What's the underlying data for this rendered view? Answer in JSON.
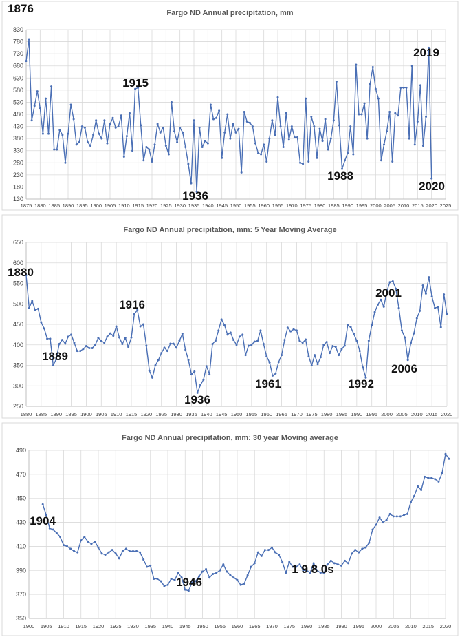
{
  "chart_data": [
    {
      "type": "line",
      "title": "Fargo ND Annual precipitation, mm",
      "xlabel": "",
      "ylabel": "",
      "x_start": 1875,
      "xlim": [
        1875,
        2025
      ],
      "ylim": [
        130,
        830
      ],
      "x_ticks": [
        1875,
        1880,
        1885,
        1890,
        1895,
        1900,
        1905,
        1910,
        1915,
        1920,
        1925,
        1930,
        1935,
        1940,
        1945,
        1950,
        1955,
        1960,
        1965,
        1970,
        1975,
        1980,
        1985,
        1990,
        1995,
        2000,
        2005,
        2010,
        2015,
        2020,
        2025
      ],
      "y_ticks": [
        130,
        180,
        230,
        280,
        330,
        380,
        430,
        480,
        530,
        580,
        630,
        680,
        730,
        780,
        830
      ],
      "grid": true,
      "color": "#4a6fb5",
      "values": [
        700,
        790,
        455,
        515,
        575,
        505,
        400,
        545,
        400,
        595,
        335,
        335,
        415,
        395,
        280,
        400,
        520,
        460,
        355,
        365,
        430,
        425,
        365,
        350,
        395,
        455,
        400,
        380,
        455,
        360,
        440,
        465,
        425,
        430,
        475,
        305,
        390,
        485,
        330,
        585,
        590,
        435,
        290,
        345,
        335,
        285,
        355,
        440,
        405,
        425,
        350,
        315,
        530,
        410,
        365,
        425,
        405,
        345,
        275,
        195,
        455,
        160,
        425,
        345,
        370,
        360,
        520,
        460,
        465,
        495,
        300,
        405,
        480,
        380,
        440,
        405,
        420,
        240,
        490,
        450,
        445,
        430,
        360,
        320,
        315,
        355,
        285,
        380,
        455,
        395,
        550,
        430,
        345,
        485,
        375,
        430,
        385,
        385,
        280,
        275,
        545,
        285,
        470,
        430,
        300,
        420,
        370,
        460,
        335,
        380,
        455,
        615,
        435,
        255,
        290,
        320,
        430,
        315,
        685,
        480,
        480,
        525,
        380,
        605,
        675,
        585,
        545,
        290,
        355,
        410,
        490,
        285,
        485,
        475,
        590,
        590,
        590,
        380,
        680,
        355,
        450,
        600,
        350,
        470,
        755,
        215
      ],
      "annotations": [
        "1876",
        "1915",
        "1936",
        "1988",
        "2019",
        "2020"
      ]
    },
    {
      "type": "line",
      "title": "Fargo ND Annual precipitation, mm: 5 Year Moving Average",
      "xlabel": "",
      "ylabel": "",
      "x_start": 1880,
      "xlim": [
        1880,
        2020
      ],
      "ylim": [
        250,
        650
      ],
      "x_ticks": [
        1880,
        1885,
        1890,
        1895,
        1900,
        1905,
        1910,
        1915,
        1920,
        1925,
        1930,
        1935,
        1940,
        1945,
        1950,
        1955,
        1960,
        1965,
        1970,
        1975,
        1980,
        1985,
        1990,
        1995,
        2000,
        2005,
        2010,
        2015,
        2020
      ],
      "y_ticks": [
        250,
        300,
        350,
        400,
        450,
        500,
        550,
        600,
        650
      ],
      "grid": true,
      "color": "#4a6fb5",
      "values": [
        570,
        490,
        507,
        485,
        488,
        455,
        440,
        415,
        415,
        350,
        365,
        402,
        412,
        403,
        420,
        425,
        405,
        385,
        385,
        390,
        397,
        392,
        392,
        400,
        417,
        410,
        405,
        420,
        428,
        422,
        445,
        418,
        402,
        417,
        395,
        418,
        475,
        485,
        445,
        450,
        398,
        337,
        320,
        350,
        363,
        380,
        393,
        385,
        403,
        403,
        393,
        410,
        427,
        388,
        363,
        328,
        335,
        283,
        302,
        315,
        348,
        328,
        402,
        410,
        435,
        462,
        448,
        425,
        430,
        412,
        400,
        420,
        425,
        375,
        398,
        400,
        408,
        410,
        435,
        402,
        372,
        357,
        325,
        330,
        358,
        375,
        412,
        442,
        433,
        438,
        435,
        410,
        405,
        413,
        372,
        350,
        375,
        353,
        370,
        400,
        407,
        380,
        397,
        395,
        375,
        390,
        398,
        448,
        443,
        427,
        410,
        385,
        345,
        320,
        410,
        448,
        480,
        498,
        510,
        493,
        530,
        553,
        555,
        537,
        490,
        435,
        418,
        363,
        405,
        428,
        465,
        483,
        545,
        525,
        565,
        518,
        490,
        492,
        443,
        523,
        475
      ],
      "annotations": [
        "1880",
        "1889",
        "1916",
        "1936",
        "1961",
        "1992",
        "2001",
        "2006"
      ]
    },
    {
      "type": "line",
      "title": "Fargo ND Annual precipitation, mm: 30 year Moving average",
      "xlabel": "",
      "ylabel": "",
      "x_start": 1904,
      "xlim": [
        1900,
        2020
      ],
      "ylim": [
        350,
        490
      ],
      "x_ticks": [
        1900,
        1905,
        1910,
        1915,
        1920,
        1925,
        1930,
        1935,
        1940,
        1945,
        1950,
        1955,
        1960,
        1965,
        1970,
        1975,
        1980,
        1985,
        1990,
        1995,
        2000,
        2005,
        2010,
        2015,
        2020
      ],
      "y_ticks": [
        350,
        370,
        390,
        410,
        430,
        450,
        470,
        490
      ],
      "grid": true,
      "color": "#4a6fb5",
      "values": [
        445,
        436,
        425,
        424,
        421,
        418,
        411,
        410,
        408,
        406,
        405,
        415,
        418,
        414,
        412,
        414,
        409,
        404,
        403,
        405,
        407,
        404,
        400,
        406,
        408,
        406,
        406,
        406,
        405,
        399,
        393,
        394,
        383,
        383,
        381,
        377,
        378,
        383,
        382,
        388,
        384,
        374,
        373,
        380,
        381,
        385,
        389,
        391,
        384,
        387,
        388,
        390,
        395,
        389,
        386,
        384,
        382,
        378,
        379,
        386,
        393,
        396,
        405,
        402,
        407,
        407,
        409,
        405,
        403,
        397,
        388,
        397,
        393,
        393,
        395,
        390,
        390,
        388,
        396,
        390,
        388,
        388,
        395,
        398,
        396,
        395,
        394,
        398,
        396,
        404,
        407,
        405,
        408,
        409,
        413,
        424,
        428,
        434,
        430,
        432,
        437,
        435,
        435,
        435,
        436,
        437,
        447,
        452,
        460,
        457,
        468,
        467,
        467,
        466,
        464,
        471,
        487,
        483
      ],
      "annotations": [
        "1904",
        "1946",
        "1 9 8 0s"
      ]
    }
  ]
}
